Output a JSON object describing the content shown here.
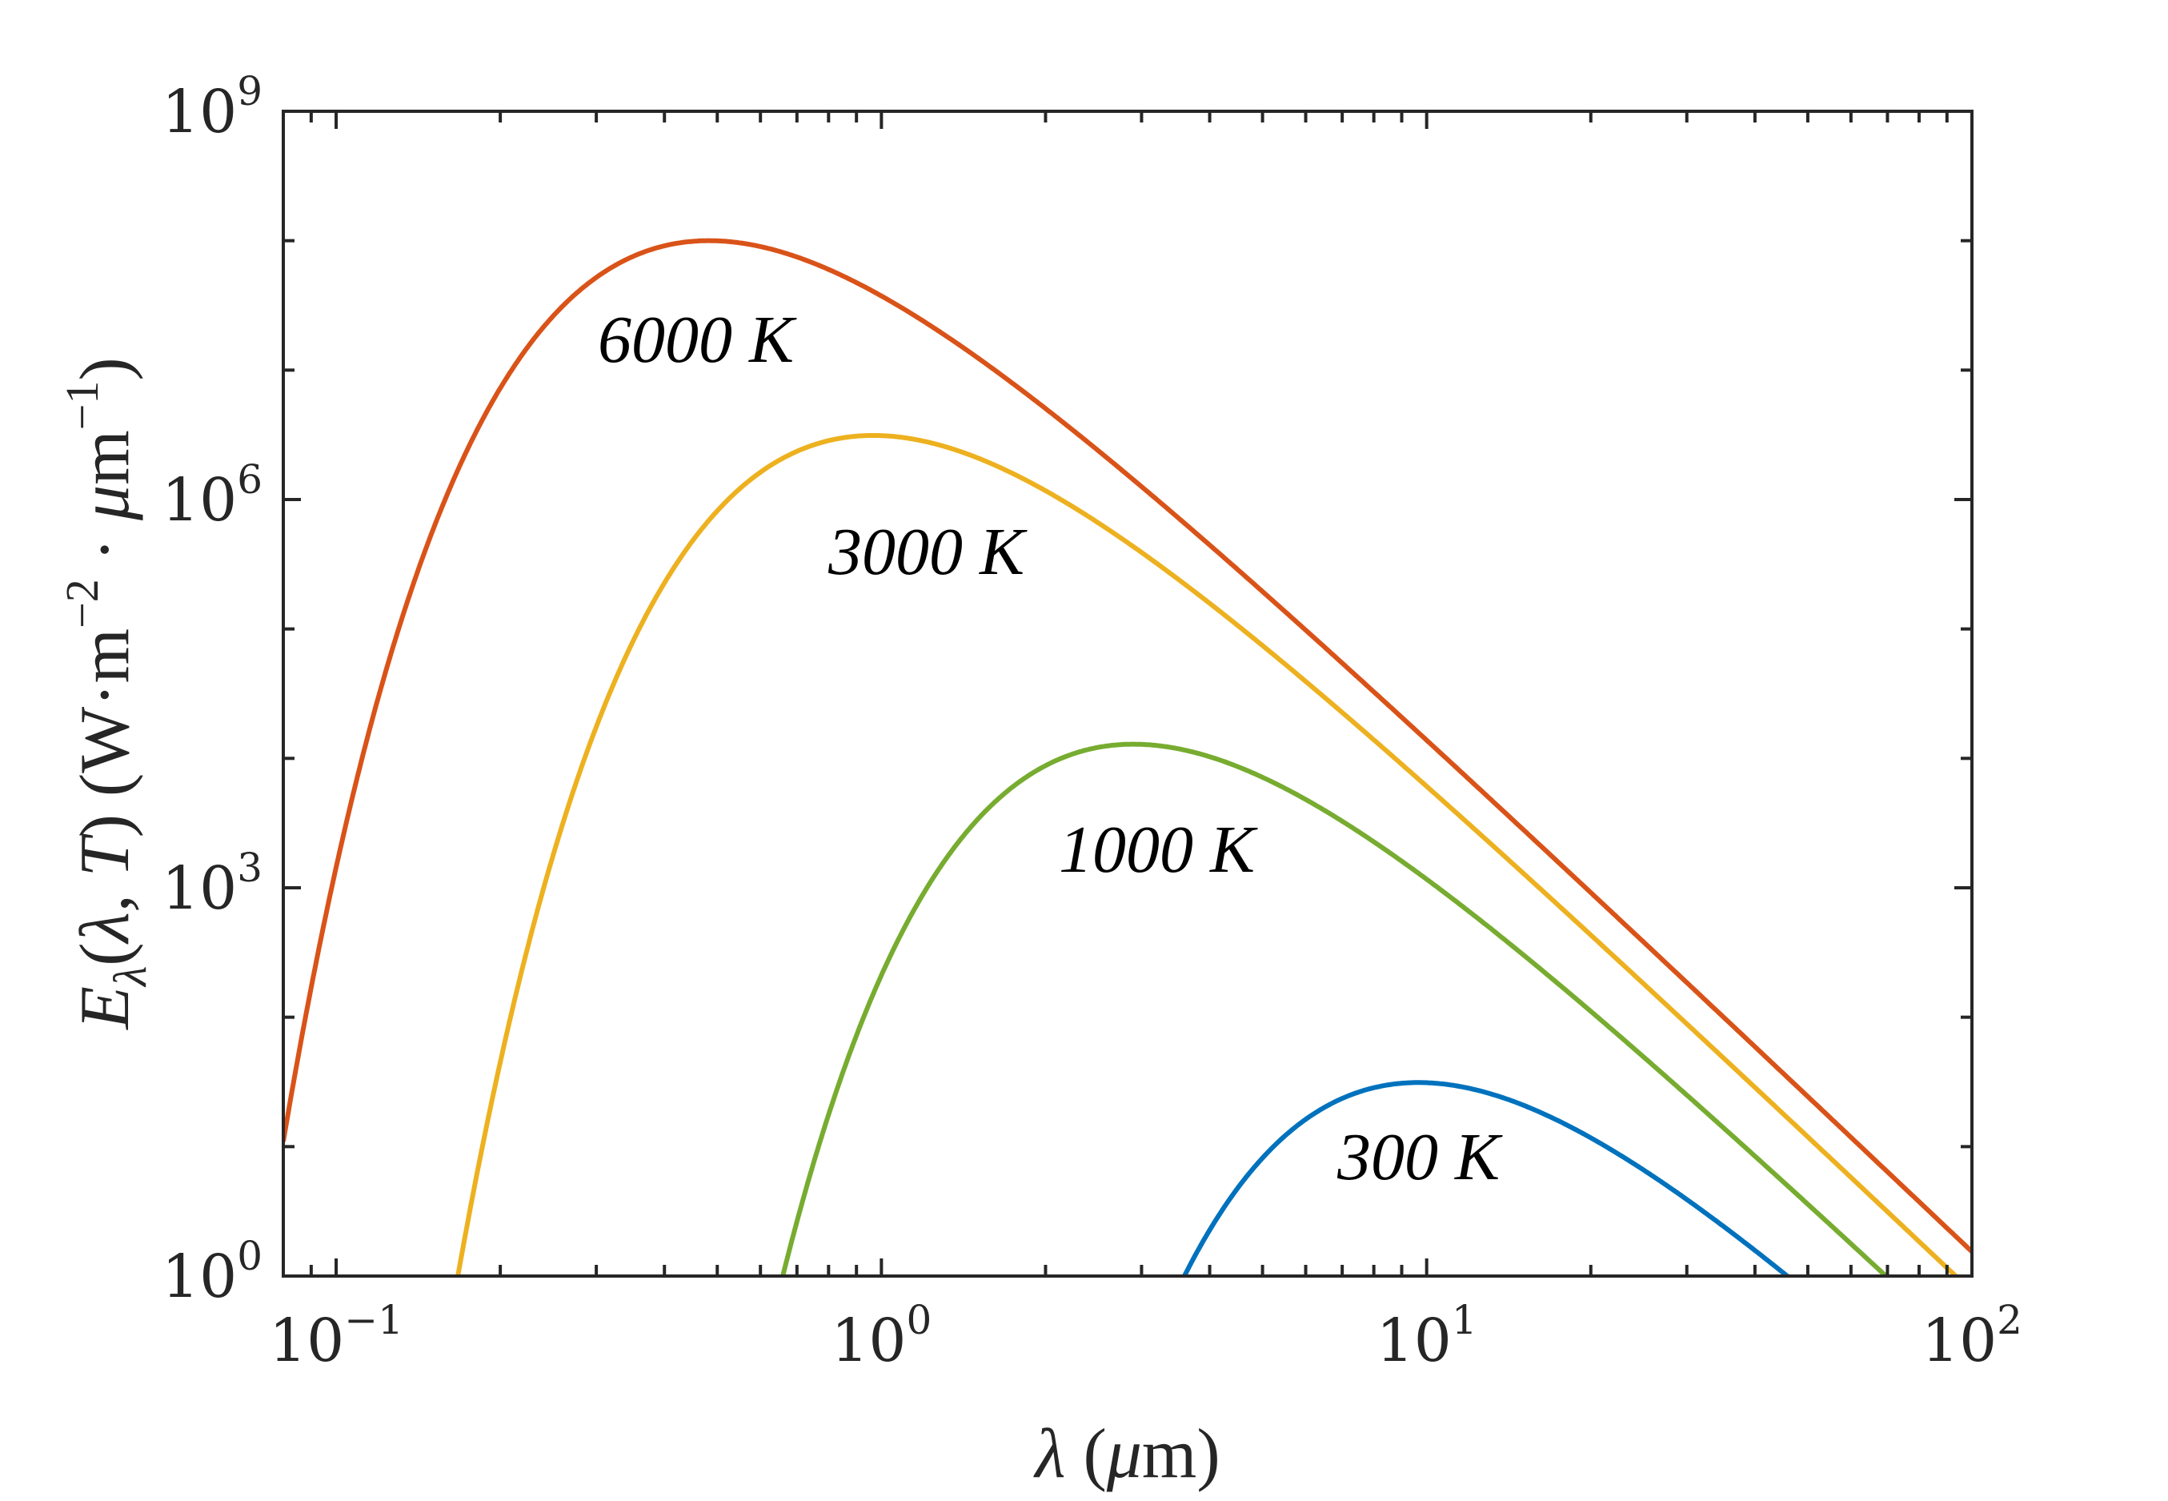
{
  "chart_data": {
    "type": "line",
    "title": "",
    "x_scale": "log",
    "y_scale": "log",
    "xlim": [
      0.08,
      100
    ],
    "ylim": [
      1,
      1000000000
    ],
    "grid": false,
    "x_ticks": [
      {
        "base": "10",
        "exp": "−1",
        "value": 0.1
      },
      {
        "base": "10",
        "exp": "0",
        "value": 1
      },
      {
        "base": "10",
        "exp": "1",
        "value": 10
      },
      {
        "base": "10",
        "exp": "2",
        "value": 100
      }
    ],
    "y_ticks": [
      {
        "base": "10",
        "exp": "0",
        "value": 1
      },
      {
        "base": "10",
        "exp": "3",
        "value": 1000
      },
      {
        "base": "10",
        "exp": "6",
        "value": 1000000
      },
      {
        "base": "10",
        "exp": "9",
        "value": 1000000000
      }
    ],
    "xlabel": {
      "parts": [
        {
          "text": "λ",
          "style": "italic"
        },
        {
          "text": " (",
          "style": "normal"
        },
        {
          "text": "μ",
          "style": "italic"
        },
        {
          "text": "m)",
          "style": "normal"
        }
      ]
    },
    "ylabel": {
      "parts": [
        {
          "text": "E",
          "style": "italic"
        },
        {
          "text": "λ",
          "style": "sub"
        },
        {
          "text": "(",
          "style": "normal"
        },
        {
          "text": "λ, T",
          "style": "italic"
        },
        {
          "text": ")  (W·m",
          "style": "normal"
        },
        {
          "text": "−2",
          "style": "sup"
        },
        {
          "text": " · ",
          "style": "normal"
        },
        {
          "text": "μ",
          "style": "italic"
        },
        {
          "text": "m",
          "style": "normal"
        },
        {
          "text": "−1",
          "style": "sup"
        },
        {
          "text": ")",
          "style": "normal"
        }
      ]
    },
    "model": {
      "formula": "planck",
      "C1": 374200000,
      "C2": 14388
    },
    "series": [
      {
        "name": "6000 K",
        "temperature": 6000,
        "color": "#D95319",
        "peak": {
          "x": 0.483,
          "y": 100000000
        }
      },
      {
        "name": "3000 K",
        "temperature": 3000,
        "color": "#EDB120",
        "peak": {
          "x": 0.966,
          "y": 3100000
        }
      },
      {
        "name": "1000 K",
        "temperature": 1000,
        "color": "#77AC30",
        "peak": {
          "x": 2.9,
          "y": 12800
        }
      },
      {
        "name": "300 K",
        "temperature": 300,
        "color": "#0072BD",
        "peak": {
          "x": 9.66,
          "y": 31
        }
      }
    ]
  }
}
